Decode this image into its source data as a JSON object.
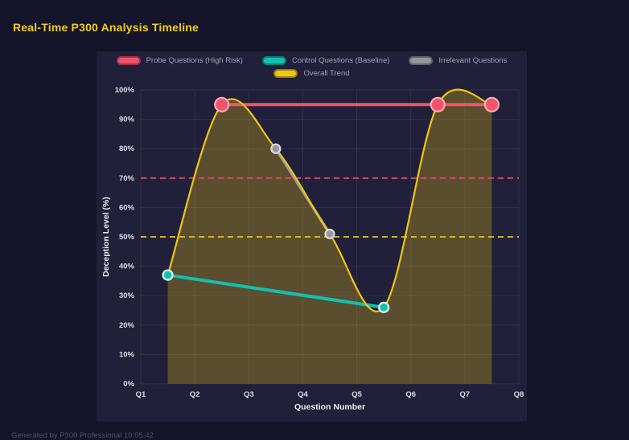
{
  "page": {
    "title": "Real-Time P300 Analysis Timeline",
    "footer": "Generated by P300 Professional   19:05:42"
  },
  "colors": {
    "background": "#14142a",
    "panel": "#20203a",
    "title": "#f2cf13",
    "grid": "rgba(255,255,255,0.07)",
    "tick_text": "#dcdce8",
    "axis_label_text": "#eceef5",
    "legend_text": "#9ea0b8"
  },
  "chart_data": {
    "type": "line",
    "title": "",
    "xlabel": "Question Number",
    "ylabel": "Deception Level (%)",
    "x_tick_labels": [
      "Q1",
      "Q2",
      "Q3",
      "Q4",
      "Q5",
      "Q6",
      "Q7",
      "Q8"
    ],
    "y_tick_labels": [
      "0%",
      "10%",
      "20%",
      "30%",
      "40%",
      "50%",
      "60%",
      "70%",
      "80%",
      "90%",
      "100%"
    ],
    "xlim": [
      1,
      8
    ],
    "ylim": [
      0,
      100
    ],
    "grid": true,
    "legend_position": "top",
    "series": [
      {
        "name": "Probe Questions (High Risk)",
        "color": "#f0536a",
        "marker_stroke": "#ffa9b2",
        "marker_radius": 8.5,
        "line_width": 4,
        "x": [
          2.5,
          6.5,
          7.5
        ],
        "y": [
          95,
          95,
          95
        ]
      },
      {
        "name": "Control Questions (Baseline)",
        "color": "#14c0ae",
        "marker_stroke": "#def7f4",
        "marker_radius": 6,
        "line_width": 4,
        "x": [
          1.5,
          5.5
        ],
        "y": [
          37,
          26
        ]
      },
      {
        "name": "Irrelevant Questions",
        "color": "#97979f",
        "marker_stroke": "#d8d8de",
        "marker_radius": 5.5,
        "line_width": 3.5,
        "x": [
          3.5,
          4.5
        ],
        "y": [
          80,
          51
        ]
      },
      {
        "name": "Overall Trend",
        "color": "#f2c511",
        "line_width": 2.2,
        "smooth": true,
        "fill_opacity": 0.28,
        "x": [
          1.5,
          2.5,
          3.5,
          4.5,
          5.5,
          6.5,
          7.5
        ],
        "y": [
          37,
          95,
          80,
          51,
          26,
          95,
          95
        ]
      }
    ],
    "thresholds": [
      {
        "y": 70,
        "color": "#e8486a",
        "style": "dashed"
      },
      {
        "y": 50,
        "color": "#e6c419",
        "style": "dashed"
      }
    ]
  }
}
